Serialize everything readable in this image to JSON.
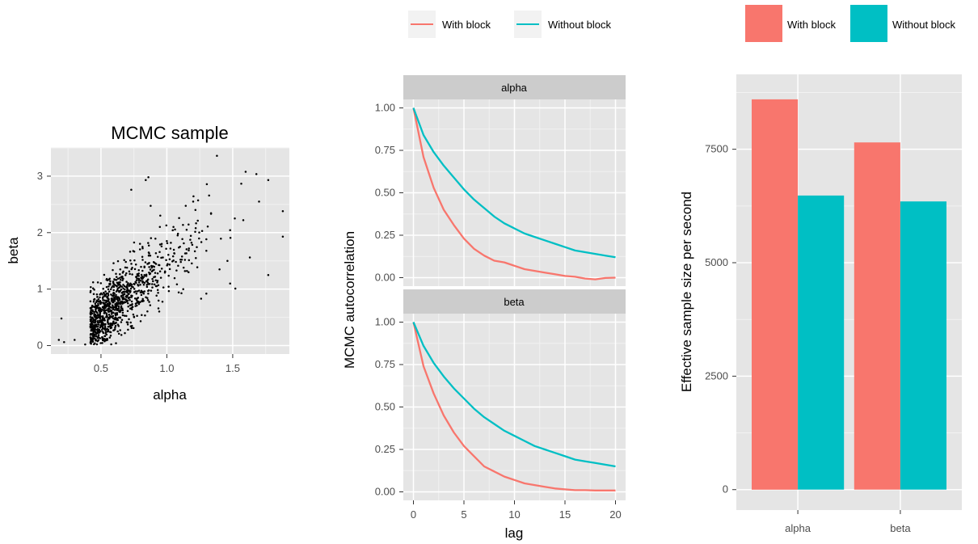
{
  "colors": {
    "with_block": "#F8766D",
    "without_block": "#00BFC4",
    "panel_bg": "#E5E5E5",
    "grid": "#FFFFFF",
    "strip_bg": "#CCCCCC",
    "point": "#000000"
  },
  "chart_data": [
    {
      "type": "scatter",
      "title": "MCMC sample",
      "xlabel": "alpha",
      "ylabel": "beta",
      "xlim": [
        0.12,
        1.93
      ],
      "ylim": [
        -0.15,
        3.5
      ],
      "xticks": [
        0.5,
        1.0,
        1.5
      ],
      "xtick_labels": [
        "0.5",
        "1.0",
        "1.5"
      ],
      "yticks": [
        0,
        1,
        2,
        3
      ],
      "ytick_labels": [
        "0",
        "1",
        "2",
        "3"
      ],
      "grid": true,
      "n_points": 1000,
      "points": [
        [
          1.38,
          3.36
        ],
        [
          0.86,
          2.98
        ],
        [
          0.84,
          2.93
        ],
        [
          1.77,
          2.93
        ],
        [
          0.73,
          2.76
        ],
        [
          1.7,
          2.55
        ],
        [
          1.88,
          2.38
        ],
        [
          1.58,
          2.22
        ],
        [
          1.2,
          2.55
        ],
        [
          1.88,
          1.93
        ],
        [
          1.63,
          1.56
        ],
        [
          1.77,
          1.25
        ],
        [
          1.52,
          1.01
        ],
        [
          1.3,
          0.92
        ],
        [
          1.26,
          0.83
        ],
        [
          0.18,
          0.1
        ],
        [
          0.22,
          0.06
        ],
        [
          0.3,
          0.1
        ],
        [
          0.2,
          0.48
        ],
        [
          0.38,
          0.02
        ],
        [
          1.4,
          1.35
        ],
        [
          1.48,
          1.1
        ],
        [
          1.15,
          2.05
        ],
        [
          1.1,
          1.75
        ],
        [
          1.05,
          2.1
        ],
        [
          1.22,
          1.55
        ],
        [
          0.95,
          2.3
        ],
        [
          1.0,
          1.85
        ],
        [
          1.3,
          1.68
        ],
        [
          1.46,
          1.5
        ]
      ]
    },
    {
      "type": "line",
      "xlabel": "lag",
      "ylabel": "MCMC autocorrelation",
      "facets": [
        "alpha",
        "beta"
      ],
      "x": [
        0,
        1,
        2,
        3,
        4,
        5,
        6,
        7,
        8,
        9,
        10,
        11,
        12,
        13,
        14,
        15,
        16,
        17,
        18,
        19,
        20
      ],
      "xlim": [
        -1,
        21
      ],
      "ylim": [
        -0.05,
        1.05
      ],
      "xticks": [
        0,
        5,
        10,
        15,
        20
      ],
      "xtick_labels": [
        "0",
        "5",
        "10",
        "15",
        "20"
      ],
      "yticks": [
        0,
        0.25,
        0.5,
        0.75,
        1.0
      ],
      "ytick_labels": [
        "0.00",
        "0.25",
        "0.50",
        "0.75",
        "1.00"
      ],
      "legend": "top",
      "panels": [
        {
          "facet": "alpha",
          "series": [
            {
              "name": "With block",
              "values": [
                1.0,
                0.71,
                0.53,
                0.4,
                0.31,
                0.23,
                0.17,
                0.13,
                0.1,
                0.09,
                0.07,
                0.05,
                0.04,
                0.03,
                0.02,
                0.01,
                0.005,
                -0.005,
                -0.01,
                -0.002,
                0.0
              ]
            },
            {
              "name": "Without block",
              "values": [
                1.0,
                0.84,
                0.74,
                0.66,
                0.59,
                0.52,
                0.46,
                0.41,
                0.36,
                0.32,
                0.29,
                0.26,
                0.24,
                0.22,
                0.2,
                0.18,
                0.16,
                0.15,
                0.14,
                0.13,
                0.12
              ]
            }
          ]
        },
        {
          "facet": "beta",
          "series": [
            {
              "name": "With block",
              "values": [
                1.0,
                0.74,
                0.58,
                0.45,
                0.35,
                0.27,
                0.21,
                0.15,
                0.12,
                0.09,
                0.07,
                0.05,
                0.04,
                0.03,
                0.02,
                0.015,
                0.01,
                0.01,
                0.008,
                0.008,
                0.008
              ]
            },
            {
              "name": "Without block",
              "values": [
                1.0,
                0.86,
                0.76,
                0.68,
                0.61,
                0.55,
                0.49,
                0.44,
                0.4,
                0.36,
                0.33,
                0.3,
                0.27,
                0.25,
                0.23,
                0.21,
                0.19,
                0.18,
                0.17,
                0.16,
                0.15
              ]
            }
          ]
        }
      ]
    },
    {
      "type": "bar",
      "xlabel": "",
      "ylabel": "Effective sample size per second",
      "categories": [
        "alpha",
        "beta"
      ],
      "series": [
        {
          "name": "With block",
          "values": [
            8600,
            7650
          ]
        },
        {
          "name": "Without block",
          "values": [
            6480,
            6350
          ]
        }
      ],
      "ylim": [
        -450,
        9150
      ],
      "yticks": [
        0,
        2500,
        5000,
        7500
      ],
      "ytick_labels": [
        "0",
        "2500",
        "5000",
        "7500"
      ],
      "legend": "top"
    }
  ]
}
